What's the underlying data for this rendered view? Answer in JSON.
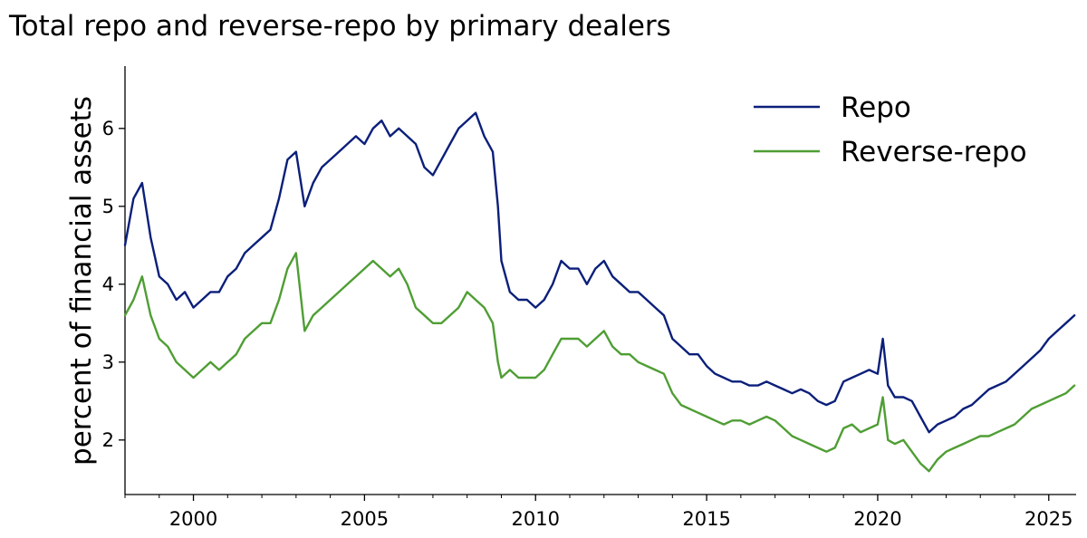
{
  "chart_data": {
    "type": "line",
    "title": "Total repo and reverse-repo by primary dealers",
    "xlabel": "",
    "ylabel": "percent of financial assets",
    "xlim": [
      1998.0,
      2025.8
    ],
    "ylim": [
      1.3,
      6.8
    ],
    "x_ticks": [
      2000,
      2005,
      2010,
      2015,
      2020,
      2025
    ],
    "y_ticks": [
      2,
      3,
      4,
      5,
      6
    ],
    "grid": false,
    "legend": "top-right",
    "series": [
      {
        "name": "Repo",
        "color": "#0b1f7a",
        "points": [
          [
            1998.0,
            4.5
          ],
          [
            1998.25,
            5.1
          ],
          [
            1998.5,
            5.3
          ],
          [
            1998.75,
            4.6
          ],
          [
            1999.0,
            4.1
          ],
          [
            1999.25,
            4.0
          ],
          [
            1999.5,
            3.8
          ],
          [
            1999.75,
            3.9
          ],
          [
            2000.0,
            3.7
          ],
          [
            2000.25,
            3.8
          ],
          [
            2000.5,
            3.9
          ],
          [
            2000.75,
            3.9
          ],
          [
            2001.0,
            4.1
          ],
          [
            2001.25,
            4.2
          ],
          [
            2001.5,
            4.4
          ],
          [
            2001.75,
            4.5
          ],
          [
            2002.0,
            4.6
          ],
          [
            2002.25,
            4.7
          ],
          [
            2002.5,
            5.1
          ],
          [
            2002.75,
            5.6
          ],
          [
            2003.0,
            5.7
          ],
          [
            2003.25,
            5.0
          ],
          [
            2003.5,
            5.3
          ],
          [
            2003.75,
            5.5
          ],
          [
            2004.0,
            5.6
          ],
          [
            2004.25,
            5.7
          ],
          [
            2004.5,
            5.8
          ],
          [
            2004.75,
            5.9
          ],
          [
            2005.0,
            5.8
          ],
          [
            2005.25,
            6.0
          ],
          [
            2005.5,
            6.1
          ],
          [
            2005.75,
            5.9
          ],
          [
            2006.0,
            6.0
          ],
          [
            2006.25,
            5.9
          ],
          [
            2006.5,
            5.8
          ],
          [
            2006.75,
            5.5
          ],
          [
            2007.0,
            5.4
          ],
          [
            2007.25,
            5.6
          ],
          [
            2007.5,
            5.8
          ],
          [
            2007.75,
            6.0
          ],
          [
            2008.0,
            6.1
          ],
          [
            2008.25,
            6.2
          ],
          [
            2008.5,
            5.9
          ],
          [
            2008.75,
            5.7
          ],
          [
            2008.9,
            5.0
          ],
          [
            2009.0,
            4.3
          ],
          [
            2009.25,
            3.9
          ],
          [
            2009.5,
            3.8
          ],
          [
            2009.75,
            3.8
          ],
          [
            2010.0,
            3.7
          ],
          [
            2010.25,
            3.8
          ],
          [
            2010.5,
            4.0
          ],
          [
            2010.75,
            4.3
          ],
          [
            2011.0,
            4.2
          ],
          [
            2011.25,
            4.2
          ],
          [
            2011.5,
            4.0
          ],
          [
            2011.75,
            4.2
          ],
          [
            2012.0,
            4.3
          ],
          [
            2012.25,
            4.1
          ],
          [
            2012.5,
            4.0
          ],
          [
            2012.75,
            3.9
          ],
          [
            2013.0,
            3.9
          ],
          [
            2013.25,
            3.8
          ],
          [
            2013.5,
            3.7
          ],
          [
            2013.75,
            3.6
          ],
          [
            2014.0,
            3.3
          ],
          [
            2014.25,
            3.2
          ],
          [
            2014.5,
            3.1
          ],
          [
            2014.75,
            3.1
          ],
          [
            2015.0,
            2.95
          ],
          [
            2015.25,
            2.85
          ],
          [
            2015.5,
            2.8
          ],
          [
            2015.75,
            2.75
          ],
          [
            2016.0,
            2.75
          ],
          [
            2016.25,
            2.7
          ],
          [
            2016.5,
            2.7
          ],
          [
            2016.75,
            2.75
          ],
          [
            2017.0,
            2.7
          ],
          [
            2017.25,
            2.65
          ],
          [
            2017.5,
            2.6
          ],
          [
            2017.75,
            2.65
          ],
          [
            2018.0,
            2.6
          ],
          [
            2018.25,
            2.5
          ],
          [
            2018.5,
            2.45
          ],
          [
            2018.75,
            2.5
          ],
          [
            2019.0,
            2.75
          ],
          [
            2019.25,
            2.8
          ],
          [
            2019.5,
            2.85
          ],
          [
            2019.75,
            2.9
          ],
          [
            2020.0,
            2.85
          ],
          [
            2020.15,
            3.3
          ],
          [
            2020.3,
            2.7
          ],
          [
            2020.5,
            2.55
          ],
          [
            2020.75,
            2.55
          ],
          [
            2021.0,
            2.5
          ],
          [
            2021.25,
            2.3
          ],
          [
            2021.5,
            2.1
          ],
          [
            2021.75,
            2.2
          ],
          [
            2022.0,
            2.25
          ],
          [
            2022.25,
            2.3
          ],
          [
            2022.5,
            2.4
          ],
          [
            2022.75,
            2.45
          ],
          [
            2023.0,
            2.55
          ],
          [
            2023.25,
            2.65
          ],
          [
            2023.5,
            2.7
          ],
          [
            2023.75,
            2.75
          ],
          [
            2024.0,
            2.85
          ],
          [
            2024.25,
            2.95
          ],
          [
            2024.5,
            3.05
          ],
          [
            2024.75,
            3.15
          ],
          [
            2025.0,
            3.3
          ],
          [
            2025.25,
            3.4
          ],
          [
            2025.5,
            3.5
          ],
          [
            2025.75,
            3.6
          ]
        ]
      },
      {
        "name": "Reverse-repo",
        "color": "#4f9e34",
        "points": [
          [
            1998.0,
            3.6
          ],
          [
            1998.25,
            3.8
          ],
          [
            1998.5,
            4.1
          ],
          [
            1998.75,
            3.6
          ],
          [
            1999.0,
            3.3
          ],
          [
            1999.25,
            3.2
          ],
          [
            1999.5,
            3.0
          ],
          [
            1999.75,
            2.9
          ],
          [
            2000.0,
            2.8
          ],
          [
            2000.25,
            2.9
          ],
          [
            2000.5,
            3.0
          ],
          [
            2000.75,
            2.9
          ],
          [
            2001.0,
            3.0
          ],
          [
            2001.25,
            3.1
          ],
          [
            2001.5,
            3.3
          ],
          [
            2001.75,
            3.4
          ],
          [
            2002.0,
            3.5
          ],
          [
            2002.25,
            3.5
          ],
          [
            2002.5,
            3.8
          ],
          [
            2002.75,
            4.2
          ],
          [
            2003.0,
            4.4
          ],
          [
            2003.25,
            3.4
          ],
          [
            2003.5,
            3.6
          ],
          [
            2003.75,
            3.7
          ],
          [
            2004.0,
            3.8
          ],
          [
            2004.25,
            3.9
          ],
          [
            2004.5,
            4.0
          ],
          [
            2004.75,
            4.1
          ],
          [
            2005.0,
            4.2
          ],
          [
            2005.25,
            4.3
          ],
          [
            2005.5,
            4.2
          ],
          [
            2005.75,
            4.1
          ],
          [
            2006.0,
            4.2
          ],
          [
            2006.25,
            4.0
          ],
          [
            2006.5,
            3.7
          ],
          [
            2006.75,
            3.6
          ],
          [
            2007.0,
            3.5
          ],
          [
            2007.25,
            3.5
          ],
          [
            2007.5,
            3.6
          ],
          [
            2007.75,
            3.7
          ],
          [
            2008.0,
            3.9
          ],
          [
            2008.25,
            3.8
          ],
          [
            2008.5,
            3.7
          ],
          [
            2008.75,
            3.5
          ],
          [
            2008.9,
            3.0
          ],
          [
            2009.0,
            2.8
          ],
          [
            2009.25,
            2.9
          ],
          [
            2009.5,
            2.8
          ],
          [
            2009.75,
            2.8
          ],
          [
            2010.0,
            2.8
          ],
          [
            2010.25,
            2.9
          ],
          [
            2010.5,
            3.1
          ],
          [
            2010.75,
            3.3
          ],
          [
            2011.0,
            3.3
          ],
          [
            2011.25,
            3.3
          ],
          [
            2011.5,
            3.2
          ],
          [
            2011.75,
            3.3
          ],
          [
            2012.0,
            3.4
          ],
          [
            2012.25,
            3.2
          ],
          [
            2012.5,
            3.1
          ],
          [
            2012.75,
            3.1
          ],
          [
            2013.0,
            3.0
          ],
          [
            2013.25,
            2.95
          ],
          [
            2013.5,
            2.9
          ],
          [
            2013.75,
            2.85
          ],
          [
            2014.0,
            2.6
          ],
          [
            2014.25,
            2.45
          ],
          [
            2014.5,
            2.4
          ],
          [
            2014.75,
            2.35
          ],
          [
            2015.0,
            2.3
          ],
          [
            2015.25,
            2.25
          ],
          [
            2015.5,
            2.2
          ],
          [
            2015.75,
            2.25
          ],
          [
            2016.0,
            2.25
          ],
          [
            2016.25,
            2.2
          ],
          [
            2016.5,
            2.25
          ],
          [
            2016.75,
            2.3
          ],
          [
            2017.0,
            2.25
          ],
          [
            2017.25,
            2.15
          ],
          [
            2017.5,
            2.05
          ],
          [
            2017.75,
            2.0
          ],
          [
            2018.0,
            1.95
          ],
          [
            2018.25,
            1.9
          ],
          [
            2018.5,
            1.85
          ],
          [
            2018.75,
            1.9
          ],
          [
            2019.0,
            2.15
          ],
          [
            2019.25,
            2.2
          ],
          [
            2019.5,
            2.1
          ],
          [
            2019.75,
            2.15
          ],
          [
            2020.0,
            2.2
          ],
          [
            2020.15,
            2.55
          ],
          [
            2020.3,
            2.0
          ],
          [
            2020.5,
            1.95
          ],
          [
            2020.75,
            2.0
          ],
          [
            2021.0,
            1.85
          ],
          [
            2021.25,
            1.7
          ],
          [
            2021.5,
            1.6
          ],
          [
            2021.75,
            1.75
          ],
          [
            2022.0,
            1.85
          ],
          [
            2022.25,
            1.9
          ],
          [
            2022.5,
            1.95
          ],
          [
            2022.75,
            2.0
          ],
          [
            2023.0,
            2.05
          ],
          [
            2023.25,
            2.05
          ],
          [
            2023.5,
            2.1
          ],
          [
            2023.75,
            2.15
          ],
          [
            2024.0,
            2.2
          ],
          [
            2024.25,
            2.3
          ],
          [
            2024.5,
            2.4
          ],
          [
            2024.75,
            2.45
          ],
          [
            2025.0,
            2.5
          ],
          [
            2025.25,
            2.55
          ],
          [
            2025.5,
            2.6
          ],
          [
            2025.75,
            2.7
          ]
        ]
      }
    ]
  }
}
